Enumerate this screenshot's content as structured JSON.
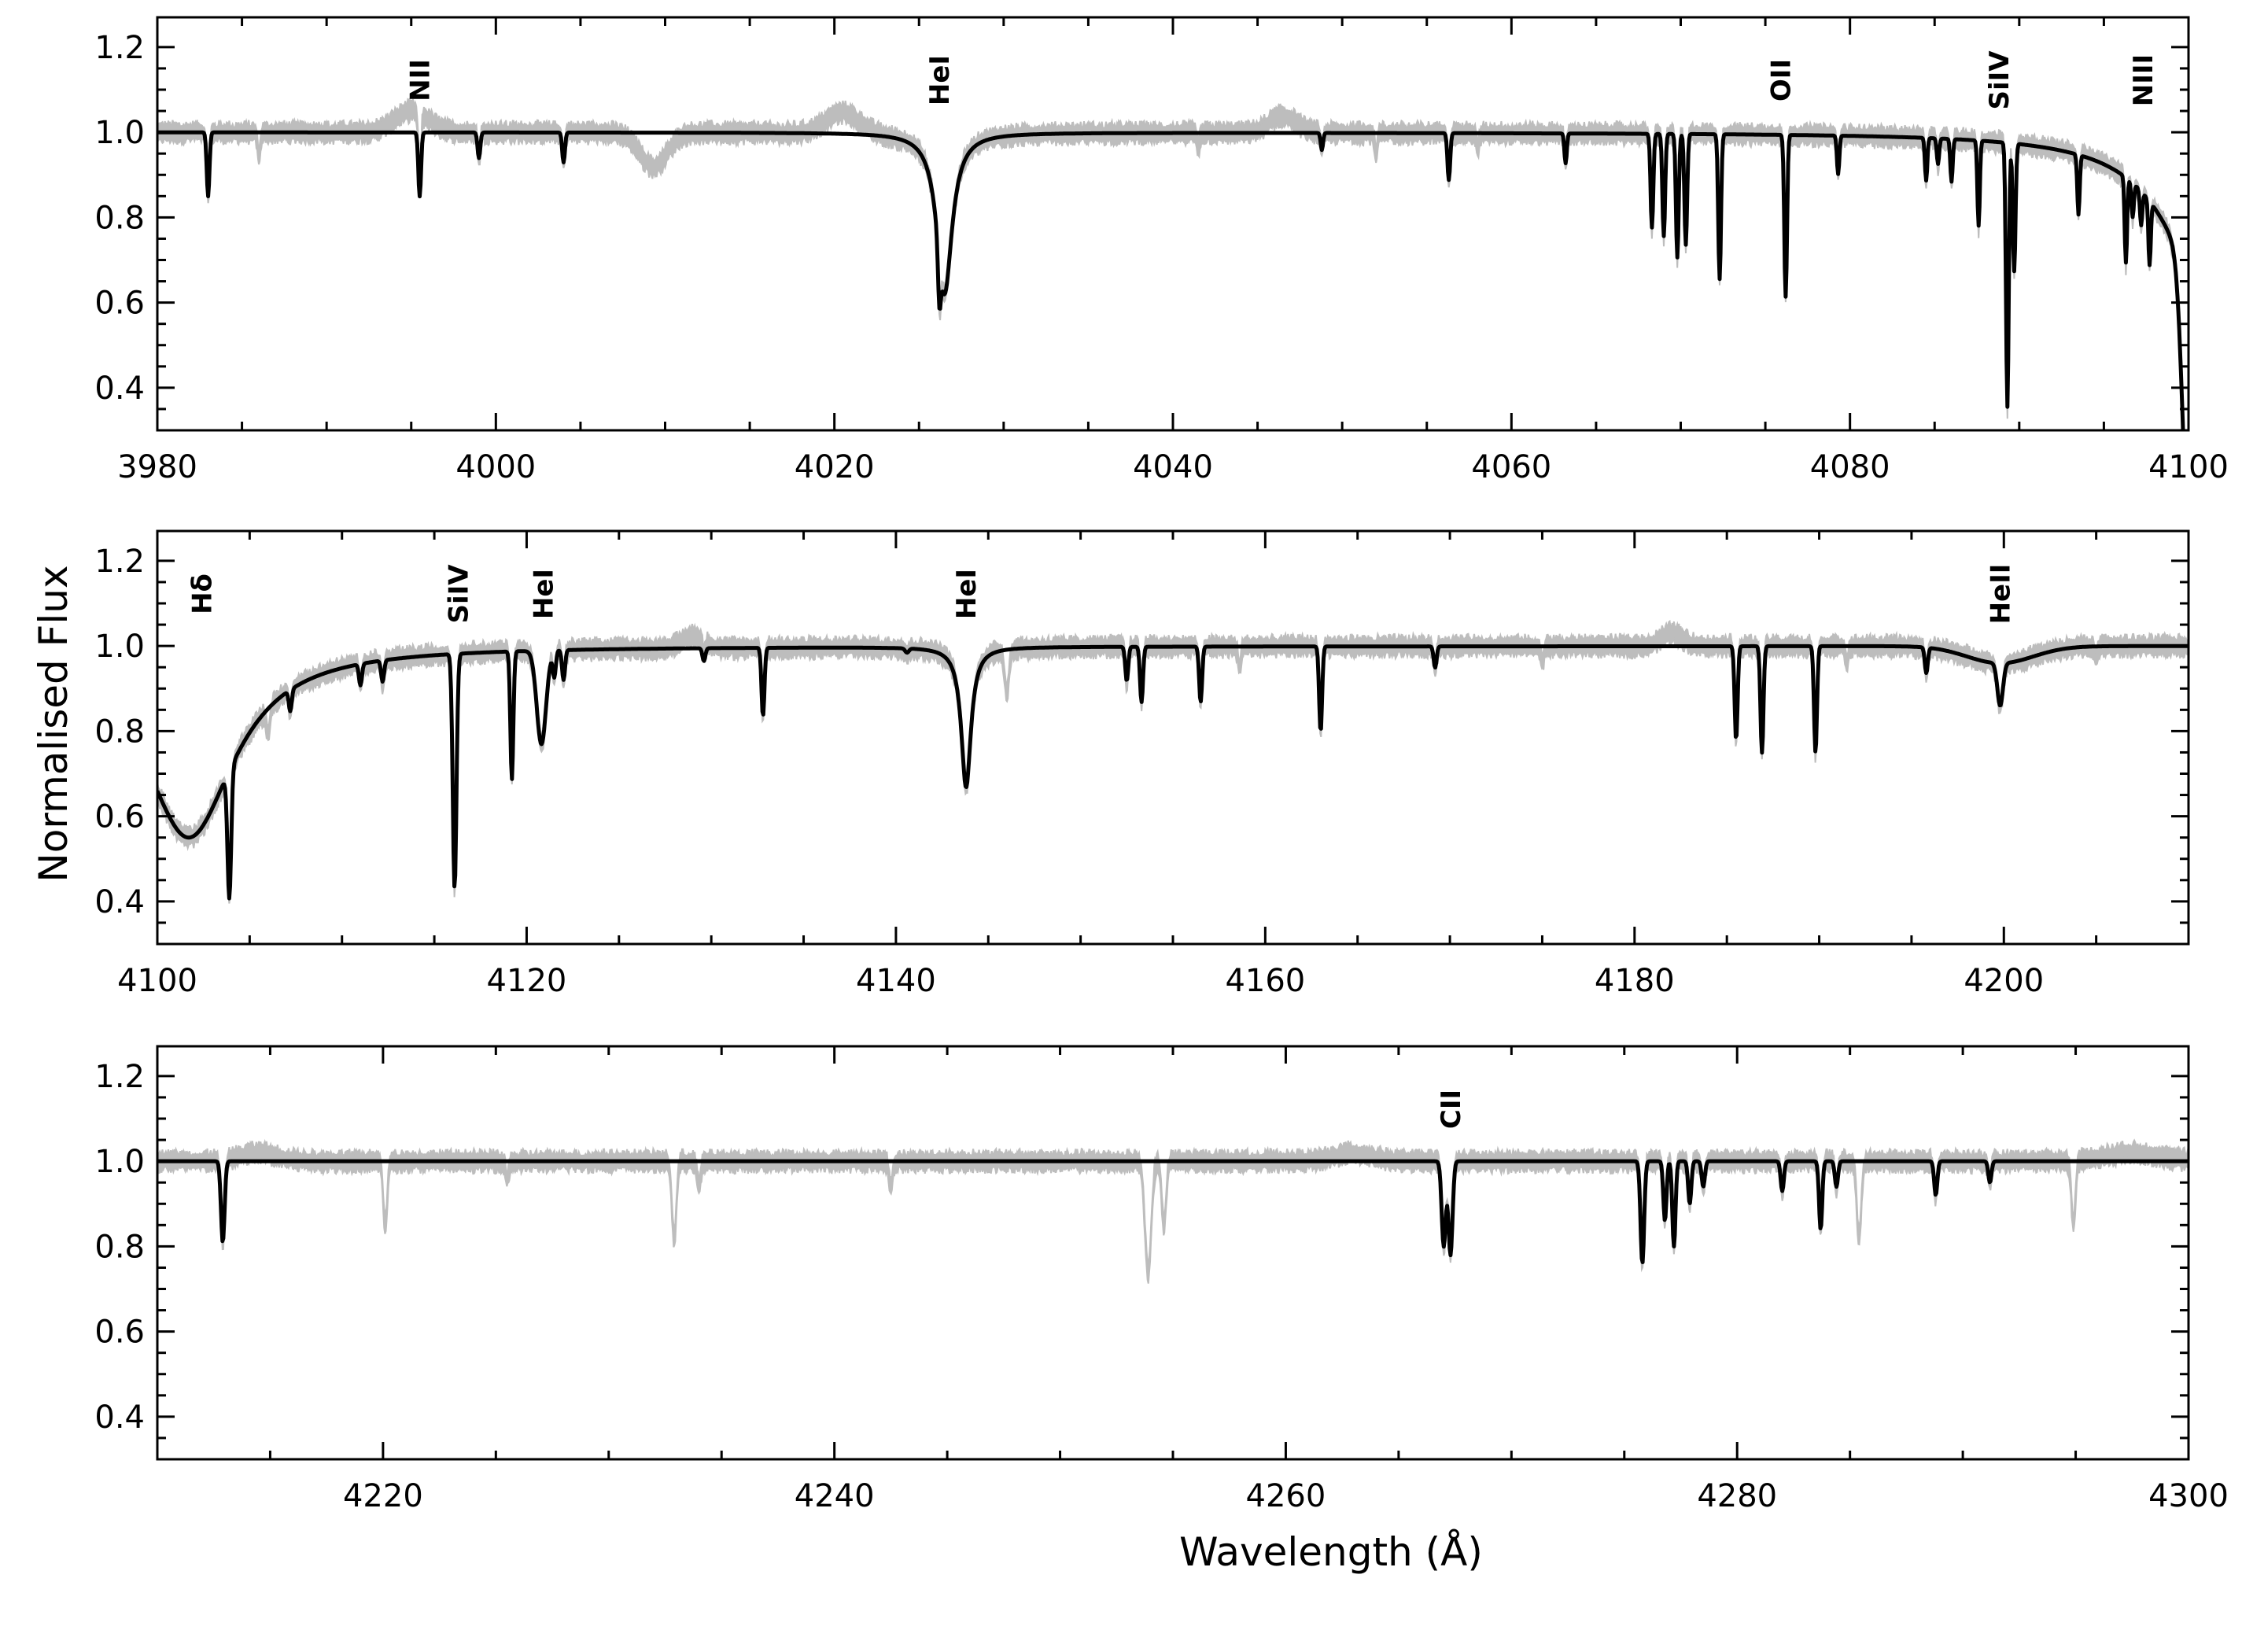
{
  "chart_data": {
    "type": "line",
    "xlabel": "Wavelength (Å)",
    "ylabel": "Normalised Flux",
    "style": {
      "observed_color": "#bdbdbd",
      "model_color": "#000000",
      "frame_color": "#000000"
    },
    "panels": [
      {
        "xlim": [
          3980,
          4100
        ],
        "ylim": [
          0.3,
          1.27
        ],
        "xticks": [
          3980,
          4000,
          4020,
          4040,
          4060,
          4080,
          4100
        ],
        "yticks": [
          0.4,
          0.6,
          0.8,
          1.0,
          1.2
        ],
        "line_labels": [
          {
            "text": "NII",
            "x": 3995.5
          },
          {
            "text": "HeI",
            "x": 4026.2
          },
          {
            "text": "OII",
            "x": 4075.9
          },
          {
            "text": "SiIV",
            "x": 4088.8
          },
          {
            "text": "NIII",
            "x": 4097.3
          }
        ],
        "model_lines": [
          {
            "x": 3983.0,
            "depth": 0.15,
            "width": 0.08
          },
          {
            "x": 3995.5,
            "depth": 0.15,
            "width": 0.08
          },
          {
            "x": 3999.0,
            "depth": 0.06,
            "width": 0.08
          },
          {
            "x": 4004.0,
            "depth": 0.07,
            "width": 0.08
          },
          {
            "x": 4026.2,
            "depth": 0.12,
            "width": 0.08
          },
          {
            "x": 4026.5,
            "depth": 0.38,
            "width": 0.55,
            "lorentz": true
          },
          {
            "x": 4048.8,
            "depth": 0.04,
            "width": 0.07
          },
          {
            "x": 4056.3,
            "depth": 0.11,
            "width": 0.08
          },
          {
            "x": 4063.2,
            "depth": 0.07,
            "width": 0.07
          },
          {
            "x": 4068.3,
            "depth": 0.22,
            "width": 0.08
          },
          {
            "x": 4069.0,
            "depth": 0.24,
            "width": 0.08
          },
          {
            "x": 4069.8,
            "depth": 0.29,
            "width": 0.08
          },
          {
            "x": 4070.3,
            "depth": 0.26,
            "width": 0.08
          },
          {
            "x": 4072.3,
            "depth": 0.34,
            "width": 0.08
          },
          {
            "x": 4076.2,
            "depth": 0.38,
            "width": 0.08
          },
          {
            "x": 4079.3,
            "depth": 0.09,
            "width": 0.07
          },
          {
            "x": 4084.5,
            "depth": 0.1,
            "width": 0.07
          },
          {
            "x": 4085.2,
            "depth": 0.06,
            "width": 0.07
          },
          {
            "x": 4086.0,
            "depth": 0.1,
            "width": 0.07
          },
          {
            "x": 4087.6,
            "depth": 0.2,
            "width": 0.07
          },
          {
            "x": 4089.3,
            "depth": 0.62,
            "width": 0.08
          },
          {
            "x": 4089.7,
            "depth": 0.3,
            "width": 0.08
          },
          {
            "x": 4093.5,
            "depth": 0.14,
            "width": 0.07
          },
          {
            "x": 4096.3,
            "depth": 0.2,
            "width": 0.07
          },
          {
            "x": 4096.7,
            "depth": 0.08,
            "width": 0.07
          },
          {
            "x": 4097.2,
            "depth": 0.08,
            "width": 0.07
          },
          {
            "x": 4097.7,
            "depth": 0.15,
            "width": 0.07
          },
          {
            "x": 4100.0,
            "depth": 0.6,
            "width": 0.35
          },
          {
            "x": 4101.7,
            "depth": 0.45,
            "width": 3.0,
            "lorentz": true
          }
        ],
        "observed_lines": [
          {
            "x": 4009.3,
            "depth": 0.08,
            "width": 0.8
          },
          {
            "x": 3986.0,
            "depth": 0.06,
            "width": 0.08
          },
          {
            "x": 4041.5,
            "depth": 0.04,
            "width": 0.08
          },
          {
            "x": 4052.0,
            "depth": 0.05,
            "width": 0.08
          },
          {
            "x": 4058.0,
            "depth": 0.04,
            "width": 0.08
          }
        ],
        "bumps": [
          {
            "x": 3995.0,
            "height": 0.05,
            "width": 1.0
          },
          {
            "x": 4020.5,
            "height": 0.05,
            "width": 1.0
          },
          {
            "x": 4046.5,
            "height": 0.04,
            "width": 0.8
          }
        ]
      },
      {
        "xlim": [
          4100,
          4210
        ],
        "ylim": [
          0.3,
          1.27
        ],
        "xticks": [
          4100,
          4120,
          4140,
          4160,
          4180,
          4200
        ],
        "yticks": [
          0.4,
          0.6,
          0.8,
          1.0,
          1.2
        ],
        "line_labels": [
          {
            "text": "Hδ",
            "x": 4102.4
          },
          {
            "text": "SiIV",
            "x": 4116.3
          },
          {
            "text": "HeI",
            "x": 4120.9
          },
          {
            "text": "HeI",
            "x": 4143.8
          },
          {
            "text": "HeII",
            "x": 4199.8
          }
        ],
        "model_lines": [
          {
            "x": 4101.7,
            "depth": 0.45,
            "width": 3.0,
            "lorentz": true
          },
          {
            "x": 4103.9,
            "depth": 0.3,
            "width": 0.1
          },
          {
            "x": 4107.2,
            "depth": 0.05,
            "width": 0.08
          },
          {
            "x": 4111.0,
            "depth": 0.05,
            "width": 0.08
          },
          {
            "x": 4112.2,
            "depth": 0.05,
            "width": 0.08
          },
          {
            "x": 4116.1,
            "depth": 0.55,
            "width": 0.1
          },
          {
            "x": 4119.2,
            "depth": 0.3,
            "width": 0.08
          },
          {
            "x": 4120.8,
            "depth": 0.22,
            "width": 0.25
          },
          {
            "x": 4121.5,
            "depth": 0.06,
            "width": 0.08
          },
          {
            "x": 4122.0,
            "depth": 0.07,
            "width": 0.08
          },
          {
            "x": 4129.6,
            "depth": 0.03,
            "width": 0.08
          },
          {
            "x": 4132.8,
            "depth": 0.16,
            "width": 0.08
          },
          {
            "x": 4140.6,
            "depth": 0.01,
            "width": 0.1
          },
          {
            "x": 4143.8,
            "depth": 0.33,
            "width": 0.32,
            "lorentz": true
          },
          {
            "x": 4152.5,
            "depth": 0.08,
            "width": 0.08
          },
          {
            "x": 4153.3,
            "depth": 0.13,
            "width": 0.08
          },
          {
            "x": 4156.5,
            "depth": 0.13,
            "width": 0.08
          },
          {
            "x": 4163.0,
            "depth": 0.2,
            "width": 0.08
          },
          {
            "x": 4169.2,
            "depth": 0.05,
            "width": 0.08
          },
          {
            "x": 4185.5,
            "depth": 0.22,
            "width": 0.08
          },
          {
            "x": 4186.9,
            "depth": 0.25,
            "width": 0.08
          },
          {
            "x": 4189.8,
            "depth": 0.25,
            "width": 0.08
          },
          {
            "x": 4195.8,
            "depth": 0.06,
            "width": 0.08
          },
          {
            "x": 4199.8,
            "depth": 0.1,
            "width": 0.15
          },
          {
            "x": 4199.8,
            "depth": 0.04,
            "width": 1.8
          }
        ],
        "observed_lines": [
          {
            "x": 4106.0,
            "depth": 0.06,
            "width": 0.1
          },
          {
            "x": 4146.0,
            "depth": 0.1,
            "width": 0.12
          },
          {
            "x": 4158.6,
            "depth": 0.05,
            "width": 0.08
          },
          {
            "x": 4175.0,
            "depth": 0.04,
            "width": 0.08
          },
          {
            "x": 4191.5,
            "depth": 0.04,
            "width": 0.08
          },
          {
            "x": 4205.0,
            "depth": 0.03,
            "width": 0.08
          }
        ],
        "bumps": [
          {
            "x": 4129.0,
            "height": 0.03,
            "width": 0.6
          },
          {
            "x": 4182.0,
            "height": 0.03,
            "width": 0.6
          }
        ]
      },
      {
        "xlim": [
          4210,
          4300
        ],
        "ylim": [
          0.3,
          1.27
        ],
        "xticks": [
          4220,
          4240,
          4260,
          4280,
          4300
        ],
        "yticks": [
          0.4,
          0.6,
          0.8,
          1.0,
          1.2
        ],
        "line_labels": [
          {
            "text": "CII",
            "x": 4267.3
          }
        ],
        "model_lines": [
          {
            "x": 4212.9,
            "depth": 0.19,
            "width": 0.08
          },
          {
            "x": 4267.0,
            "depth": 0.2,
            "width": 0.09
          },
          {
            "x": 4267.3,
            "depth": 0.22,
            "width": 0.09
          },
          {
            "x": 4275.8,
            "depth": 0.24,
            "width": 0.08
          },
          {
            "x": 4276.8,
            "depth": 0.14,
            "width": 0.07
          },
          {
            "x": 4277.2,
            "depth": 0.2,
            "width": 0.07
          },
          {
            "x": 4277.9,
            "depth": 0.1,
            "width": 0.07
          },
          {
            "x": 4278.5,
            "depth": 0.06,
            "width": 0.07
          },
          {
            "x": 4282.0,
            "depth": 0.07,
            "width": 0.07
          },
          {
            "x": 4283.7,
            "depth": 0.16,
            "width": 0.07
          },
          {
            "x": 4284.4,
            "depth": 0.06,
            "width": 0.07
          },
          {
            "x": 4288.8,
            "depth": 0.08,
            "width": 0.07
          },
          {
            "x": 4291.2,
            "depth": 0.05,
            "width": 0.07
          }
        ],
        "observed_lines": [
          {
            "x": 4220.1,
            "depth": 0.15,
            "width": 0.09
          },
          {
            "x": 4225.5,
            "depth": 0.04,
            "width": 0.08
          },
          {
            "x": 4232.9,
            "depth": 0.18,
            "width": 0.1
          },
          {
            "x": 4234.0,
            "depth": 0.06,
            "width": 0.08
          },
          {
            "x": 4242.5,
            "depth": 0.06,
            "width": 0.08
          },
          {
            "x": 4253.9,
            "depth": 0.26,
            "width": 0.14
          },
          {
            "x": 4254.6,
            "depth": 0.15,
            "width": 0.1
          },
          {
            "x": 4285.4,
            "depth": 0.18,
            "width": 0.1
          },
          {
            "x": 4294.9,
            "depth": 0.15,
            "width": 0.09
          }
        ],
        "bumps": [
          {
            "x": 4214.5,
            "height": 0.02,
            "width": 0.8
          },
          {
            "x": 4263.0,
            "height": 0.02,
            "width": 0.8
          },
          {
            "x": 4297.5,
            "height": 0.02,
            "width": 1.2
          }
        ]
      }
    ]
  }
}
